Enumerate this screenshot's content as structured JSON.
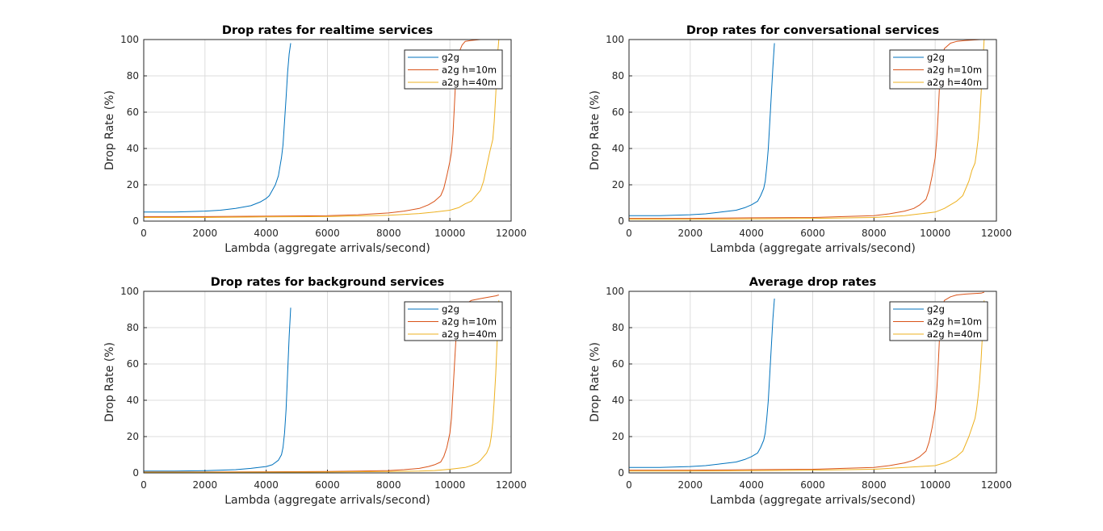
{
  "chart_data": [
    {
      "type": "line",
      "title": "Drop rates for realtime services",
      "xlabel": "Lambda (aggregate arrivals/second)",
      "ylabel": "Drop Rate (%)",
      "xlim": [
        0,
        12000
      ],
      "ylim": [
        0,
        100
      ],
      "xticks": [
        "0",
        "2000",
        "4000",
        "6000",
        "8000",
        "10000",
        "12000"
      ],
      "yticks": [
        "0",
        "20",
        "40",
        "60",
        "80",
        "100"
      ],
      "grid": true,
      "legend_position": "top-right",
      "series": [
        {
          "name": "g2g",
          "color": "#0072BD",
          "x": [
            0,
            1000,
            2000,
            2500,
            3000,
            3500,
            3800,
            4000,
            4100,
            4200,
            4300,
            4400,
            4500,
            4550,
            4600,
            4650,
            4700,
            4750,
            4800
          ],
          "y": [
            5,
            5,
            5.5,
            6,
            7,
            8.5,
            10.5,
            12.5,
            14,
            17,
            20,
            25,
            35,
            42,
            55,
            68,
            82,
            92,
            98
          ]
        },
        {
          "name": "a2g h=10m",
          "color": "#D95319",
          "x": [
            0,
            2000,
            4000,
            6000,
            7000,
            8000,
            8500,
            9000,
            9300,
            9500,
            9700,
            9800,
            9900,
            10000,
            10050,
            10100,
            10150,
            10200,
            10300,
            10400,
            10500,
            10700,
            11000,
            11500,
            11600
          ],
          "y": [
            2.5,
            2.5,
            2.7,
            3,
            3.5,
            4.5,
            5.5,
            7,
            9,
            11,
            14,
            18,
            25,
            33,
            38,
            48,
            65,
            82,
            93,
            97,
            99,
            99.5,
            100,
            100,
            100
          ]
        },
        {
          "name": "a2g h=40m",
          "color": "#EDB120",
          "x": [
            0,
            2000,
            4000,
            6000,
            8000,
            9000,
            9500,
            10000,
            10300,
            10500,
            10700,
            10800,
            10900,
            11000,
            11100,
            11200,
            11300,
            11400,
            11450,
            11500,
            11550,
            11600
          ],
          "y": [
            2,
            2,
            2.3,
            2.5,
            3.2,
            4.2,
            5,
            6,
            7.5,
            9.5,
            11,
            13,
            15,
            17,
            22,
            30,
            38,
            45,
            55,
            70,
            90,
            100
          ]
        }
      ]
    },
    {
      "type": "line",
      "title": "Drop rates for conversational services",
      "xlabel": "Lambda (aggregate arrivals/second)",
      "ylabel": "Drop Rate (%)",
      "xlim": [
        0,
        12000
      ],
      "ylim": [
        0,
        100
      ],
      "xticks": [
        "0",
        "2000",
        "4000",
        "6000",
        "8000",
        "10000",
        "12000"
      ],
      "yticks": [
        "0",
        "20",
        "40",
        "60",
        "80",
        "100"
      ],
      "grid": true,
      "legend_position": "top-right",
      "series": [
        {
          "name": "g2g",
          "color": "#0072BD",
          "x": [
            0,
            1000,
            2000,
            2500,
            3000,
            3500,
            3800,
            4000,
            4200,
            4300,
            4400,
            4450,
            4500,
            4550,
            4600,
            4650,
            4700,
            4750
          ],
          "y": [
            3,
            3,
            3.5,
            4,
            5,
            6,
            7.5,
            9,
            11,
            14,
            18,
            22,
            30,
            40,
            55,
            70,
            85,
            98
          ]
        },
        {
          "name": "a2g h=10m",
          "color": "#D95319",
          "x": [
            0,
            2000,
            4000,
            6000,
            7000,
            8000,
            8500,
            9000,
            9300,
            9500,
            9700,
            9800,
            9900,
            10000,
            10050,
            10100,
            10150,
            10200,
            10300,
            10500,
            10700,
            11000,
            11500,
            11600
          ],
          "y": [
            1.5,
            1.5,
            1.8,
            2,
            2.5,
            3,
            4,
            5.5,
            7,
            9,
            12,
            17,
            25,
            35,
            45,
            60,
            78,
            88,
            95,
            98,
            99,
            99.5,
            100,
            100
          ]
        },
        {
          "name": "a2g h=40m",
          "color": "#EDB120",
          "x": [
            0,
            2000,
            4000,
            6000,
            8000,
            9000,
            9500,
            10000,
            10300,
            10500,
            10700,
            10900,
            11000,
            11100,
            11200,
            11300,
            11350,
            11400,
            11450,
            11500,
            11550,
            11600
          ],
          "y": [
            1,
            1,
            1.2,
            1.5,
            2,
            3,
            4,
            5,
            7,
            9,
            11,
            14,
            18,
            22,
            28,
            32,
            38,
            45,
            55,
            70,
            85,
            100
          ]
        }
      ]
    },
    {
      "type": "line",
      "title": "Drop rates for background services",
      "xlabel": "Lambda (aggregate arrivals/second)",
      "ylabel": "Drop Rate (%)",
      "xlim": [
        0,
        12000
      ],
      "ylim": [
        0,
        100
      ],
      "xticks": [
        "0",
        "2000",
        "4000",
        "6000",
        "8000",
        "10000",
        "12000"
      ],
      "yticks": [
        "0",
        "20",
        "40",
        "60",
        "80",
        "100"
      ],
      "grid": true,
      "legend_position": "top-right",
      "series": [
        {
          "name": "g2g",
          "color": "#0072BD",
          "x": [
            0,
            1000,
            2000,
            3000,
            3500,
            4000,
            4200,
            4400,
            4500,
            4550,
            4600,
            4650,
            4700,
            4750,
            4800
          ],
          "y": [
            1,
            1,
            1.2,
            1.8,
            2.5,
            3.5,
            4.5,
            7,
            10,
            14,
            22,
            35,
            55,
            75,
            91
          ]
        },
        {
          "name": "a2g h=10m",
          "color": "#D95319",
          "x": [
            0,
            2000,
            4000,
            6000,
            7000,
            8000,
            8500,
            9000,
            9300,
            9500,
            9700,
            9800,
            9900,
            10000,
            10050,
            10100,
            10150,
            10200,
            10300,
            10500,
            10700,
            11000,
            11500,
            11600
          ],
          "y": [
            0.5,
            0.5,
            0.6,
            0.8,
            1,
            1.3,
            1.8,
            2.5,
            3.5,
            4.5,
            6,
            9,
            14,
            22,
            30,
            45,
            60,
            75,
            88,
            93,
            95,
            96,
            97.5,
            98
          ]
        },
        {
          "name": "a2g h=40m",
          "color": "#EDB120",
          "x": [
            0,
            2000,
            4000,
            6000,
            8000,
            9000,
            9500,
            10000,
            10500,
            10700,
            10900,
            11000,
            11100,
            11200,
            11300,
            11350,
            11400,
            11450,
            11500,
            11550,
            11600
          ],
          "y": [
            0.3,
            0.3,
            0.4,
            0.5,
            0.8,
            1,
            1.3,
            2,
            3,
            4,
            5.5,
            7,
            9,
            11,
            15,
            20,
            28,
            40,
            55,
            75,
            95
          ]
        }
      ]
    },
    {
      "type": "line",
      "title": "Average drop rates",
      "xlabel": "Lambda (aggregate arrivals/second)",
      "ylabel": "Drop Rate (%)",
      "xlim": [
        0,
        12000
      ],
      "ylim": [
        0,
        100
      ],
      "xticks": [
        "0",
        "2000",
        "4000",
        "6000",
        "8000",
        "10000",
        "12000"
      ],
      "yticks": [
        "0",
        "20",
        "40",
        "60",
        "80",
        "100"
      ],
      "grid": true,
      "legend_position": "top-right",
      "series": [
        {
          "name": "g2g",
          "color": "#0072BD",
          "x": [
            0,
            1000,
            2000,
            2500,
            3000,
            3500,
            3800,
            4000,
            4200,
            4300,
            4400,
            4450,
            4500,
            4550,
            4600,
            4650,
            4700,
            4750
          ],
          "y": [
            3,
            3,
            3.5,
            4,
            5,
            6,
            7.5,
            9,
            11,
            14,
            18,
            22,
            30,
            40,
            55,
            70,
            85,
            96
          ]
        },
        {
          "name": "a2g h=10m",
          "color": "#D95319",
          "x": [
            0,
            2000,
            4000,
            6000,
            7000,
            8000,
            8500,
            9000,
            9300,
            9500,
            9700,
            9800,
            9900,
            10000,
            10050,
            10100,
            10150,
            10200,
            10300,
            10500,
            10700,
            11000,
            11500,
            11600
          ],
          "y": [
            1.5,
            1.5,
            1.8,
            2,
            2.5,
            3,
            4,
            5.5,
            7,
            9,
            12,
            17,
            25,
            35,
            45,
            60,
            78,
            88,
            95,
            97,
            98,
            98.5,
            99,
            99.5
          ]
        },
        {
          "name": "a2g h=40m",
          "color": "#EDB120",
          "x": [
            0,
            2000,
            4000,
            6000,
            8000,
            9000,
            9500,
            10000,
            10300,
            10500,
            10700,
            10900,
            11000,
            11100,
            11200,
            11300,
            11350,
            11400,
            11450,
            11500,
            11550,
            11600
          ],
          "y": [
            1,
            1,
            1.2,
            1.5,
            2,
            3,
            3.5,
            4,
            5.5,
            7,
            9,
            12,
            16,
            20,
            25,
            30,
            35,
            42,
            50,
            62,
            78,
            95
          ]
        }
      ]
    }
  ]
}
